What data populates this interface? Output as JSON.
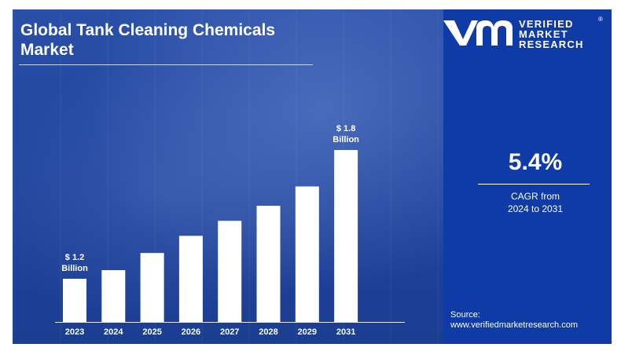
{
  "title": "Global Tank Cleaning Chemicals Market",
  "brand": {
    "line1": "VERIFIED",
    "line2": "MARKET",
    "line3": "RESEARCH",
    "reg": "®"
  },
  "cagr": {
    "value": "5.4%",
    "label_line1": "CAGR from",
    "label_line2": "2024 to 2031"
  },
  "source": {
    "label": "Source:",
    "url": "www.verifiedmarketresearch.com"
  },
  "colors": {
    "background": "#1a3a8c",
    "right_panel": "#0f3ba6",
    "bars": "#ffffff",
    "text": "#ffffff"
  },
  "chart_data": {
    "type": "bar",
    "categories": [
      "2023",
      "2024",
      "2025",
      "2026",
      "2027",
      "2028",
      "2029",
      "2031"
    ],
    "values": [
      1.2,
      1.24,
      1.32,
      1.4,
      1.47,
      1.54,
      1.63,
      1.8
    ],
    "annotations": [
      {
        "category": "2023",
        "line1": "$ 1.2",
        "line2": "Billion"
      },
      {
        "category": "2031",
        "line1": "$ 1.8",
        "line2": "Billion"
      }
    ]
  }
}
